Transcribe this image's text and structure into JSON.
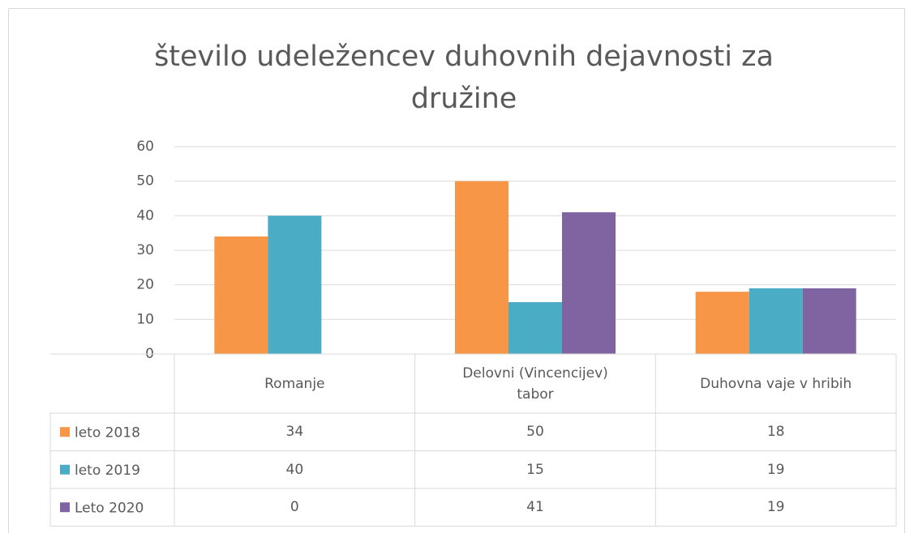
{
  "chart_data": {
    "type": "bar",
    "title": "število udeležencev duhovnih dejavnosti za družine",
    "categories": [
      "Romanje",
      "Delovni (Vincencijev) tabor",
      "Duhovna vaje v hribih"
    ],
    "series": [
      {
        "name": "leto 2018",
        "color": "#f79646",
        "values": [
          34,
          50,
          18
        ]
      },
      {
        "name": "leto 2019",
        "color": "#4bacc6",
        "values": [
          40,
          15,
          19
        ]
      },
      {
        "name": "Leto 2020",
        "color": "#8064a2",
        "values": [
          0,
          41,
          19
        ]
      }
    ],
    "ylim": [
      0,
      60
    ],
    "yticks": [
      0,
      10,
      20,
      30,
      40,
      50,
      60
    ],
    "grid": true,
    "data_table": true
  }
}
